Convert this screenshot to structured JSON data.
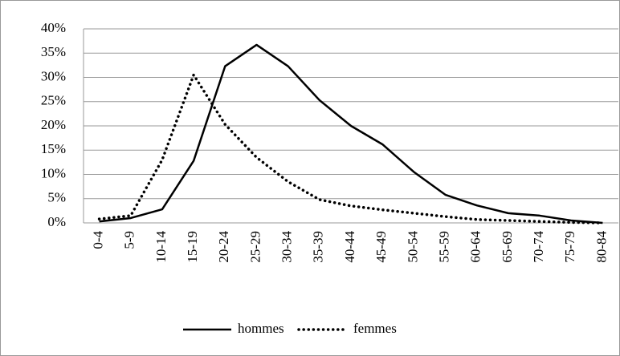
{
  "chart_data": {
    "type": "line",
    "categories": [
      "0-4",
      "5-9",
      "10-14",
      "15-19",
      "20-24",
      "25-29",
      "30-34",
      "35-39",
      "40-44",
      "45-49",
      "50-54",
      "55-59",
      "60-64",
      "65-69",
      "70-74",
      "75-79",
      "80-84"
    ],
    "series": [
      {
        "name": "hommes",
        "color": "#000000",
        "style": "solid",
        "values": [
          0.3,
          1,
          2.8,
          12.8,
          32.3,
          36.7,
          32.3,
          25.3,
          20,
          16.2,
          10.5,
          5.8,
          3.6,
          2,
          1.5,
          0.5,
          0
        ]
      },
      {
        "name": "femmes",
        "color": "#000000",
        "style": "dotted",
        "values": [
          0.8,
          1.5,
          13,
          30.5,
          20.3,
          13.5,
          8.5,
          4.8,
          3.5,
          2.7,
          2,
          1.3,
          0.7,
          0.5,
          0.3,
          0.1,
          0
        ]
      }
    ],
    "ylim": [
      0,
      40
    ],
    "yticks": [
      {
        "value": 0,
        "label": "0%"
      },
      {
        "value": 5,
        "label": "5%"
      },
      {
        "value": 10,
        "label": "10%"
      },
      {
        "value": 15,
        "label": "15%"
      },
      {
        "value": 20,
        "label": "20%"
      },
      {
        "value": 25,
        "label": "25%"
      },
      {
        "value": 30,
        "label": "30%"
      },
      {
        "value": 35,
        "label": "35%"
      },
      {
        "value": 40,
        "label": "40%"
      }
    ],
    "grid": true,
    "legend": "bottom"
  }
}
